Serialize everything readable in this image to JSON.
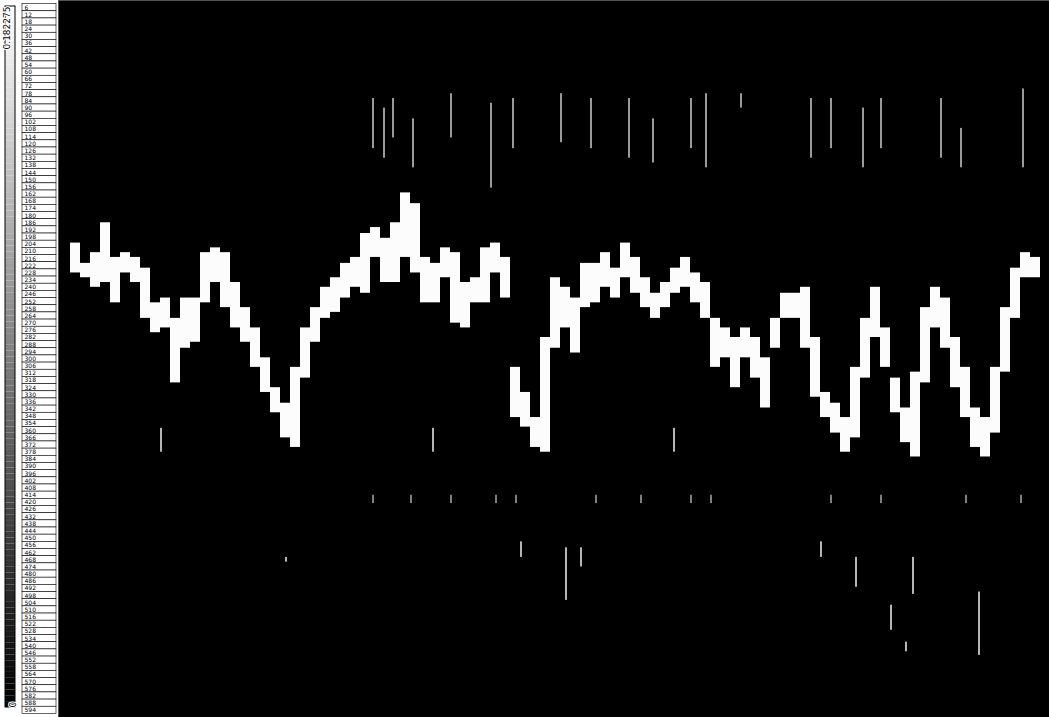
{
  "chart_data": {
    "type": "heatmap",
    "xlim": [
      0,
      991
    ],
    "ylim": [
      0,
      600
    ],
    "yticks": [
      6,
      12,
      18,
      24,
      30,
      36,
      42,
      48,
      54,
      60,
      66,
      72,
      78,
      84,
      90,
      96,
      102,
      108,
      114,
      120,
      126,
      132,
      138,
      144,
      150,
      156,
      162,
      168,
      174,
      180,
      186,
      192,
      198,
      204,
      210,
      216,
      222,
      228,
      234,
      240,
      246,
      252,
      258,
      264,
      270,
      276,
      282,
      288,
      294,
      300,
      306,
      312,
      318,
      324,
      330,
      336,
      342,
      348,
      354,
      360,
      366,
      372,
      378,
      384,
      390,
      396,
      402,
      408,
      414,
      420,
      426,
      432,
      438,
      444,
      450,
      456,
      462,
      468,
      474,
      480,
      486,
      492,
      498,
      504,
      510,
      516,
      522,
      528,
      534,
      540,
      546,
      552,
      558,
      564,
      570,
      576,
      582,
      588,
      594
    ],
    "tick_labels": "y",
    "colorbar": {
      "range": [
        0,
        0.182275
      ],
      "ticks": [
        0,
        0.182275
      ]
    },
    "cells": [
      [
        12,
        22,
        203,
        228,
        0.18
      ],
      [
        22,
        32,
        220,
        232,
        0.18
      ],
      [
        32,
        42,
        211,
        240,
        0.18
      ],
      [
        42,
        52,
        186,
        236,
        0.18
      ],
      [
        52,
        62,
        215,
        253,
        0.18
      ],
      [
        62,
        72,
        211,
        228,
        0.18
      ],
      [
        72,
        82,
        215,
        236,
        0.18
      ],
      [
        82,
        92,
        224,
        266,
        0.18
      ],
      [
        92,
        102,
        253,
        278,
        0.18
      ],
      [
        102,
        112,
        249,
        274,
        0.18
      ],
      [
        112,
        122,
        266,
        320,
        0.18
      ],
      [
        122,
        132,
        249,
        291,
        0.18
      ],
      [
        132,
        142,
        249,
        286,
        0.18
      ],
      [
        142,
        152,
        211,
        253,
        0.18
      ],
      [
        152,
        162,
        207,
        236,
        0.18
      ],
      [
        162,
        172,
        211,
        257,
        0.18
      ],
      [
        172,
        182,
        236,
        274,
        0.18
      ],
      [
        182,
        192,
        257,
        286,
        0.18
      ],
      [
        192,
        202,
        274,
        307,
        0.18
      ],
      [
        202,
        212,
        299,
        328,
        0.18
      ],
      [
        212,
        222,
        324,
        345,
        0.18
      ],
      [
        222,
        232,
        337,
        366,
        0.18
      ],
      [
        232,
        242,
        307,
        374,
        0.18
      ],
      [
        242,
        252,
        274,
        316,
        0.18
      ],
      [
        252,
        262,
        257,
        286,
        0.18
      ],
      [
        262,
        272,
        240,
        266,
        0.18
      ],
      [
        272,
        282,
        232,
        261,
        0.18
      ],
      [
        282,
        292,
        220,
        249,
        0.18
      ],
      [
        292,
        302,
        215,
        240,
        0.18
      ],
      [
        302,
        312,
        195,
        245,
        0.18
      ],
      [
        312,
        322,
        190,
        215,
        0.18
      ],
      [
        322,
        332,
        199,
        236,
        0.18
      ],
      [
        332,
        342,
        186,
        236,
        0.18
      ],
      [
        342,
        352,
        161,
        215,
        0.18
      ],
      [
        352,
        362,
        170,
        228,
        0.18
      ],
      [
        362,
        372,
        215,
        253,
        0.18
      ],
      [
        372,
        382,
        220,
        253,
        0.18
      ],
      [
        382,
        392,
        207,
        232,
        0.18
      ],
      [
        392,
        402,
        211,
        270,
        0.18
      ],
      [
        402,
        412,
        236,
        274,
        0.18
      ],
      [
        412,
        422,
        232,
        253,
        0.18
      ],
      [
        422,
        432,
        207,
        253,
        0.18
      ],
      [
        432,
        442,
        203,
        228,
        0.18
      ],
      [
        442,
        452,
        215,
        249,
        0.18
      ],
      [
        452,
        462,
        307,
        349,
        0.18
      ],
      [
        462,
        472,
        328,
        357,
        0.18
      ],
      [
        472,
        482,
        349,
        374,
        0.18
      ],
      [
        482,
        492,
        282,
        378,
        0.18
      ],
      [
        492,
        502,
        232,
        291,
        0.18
      ],
      [
        502,
        512,
        240,
        274,
        0.18
      ],
      [
        512,
        522,
        249,
        295,
        0.18
      ],
      [
        522,
        532,
        220,
        257,
        0.18
      ],
      [
        532,
        542,
        220,
        253,
        0.18
      ],
      [
        542,
        552,
        211,
        240,
        0.18
      ],
      [
        552,
        562,
        224,
        249,
        0.18
      ],
      [
        562,
        572,
        203,
        232,
        0.18
      ],
      [
        572,
        582,
        215,
        245,
        0.18
      ],
      [
        582,
        592,
        232,
        257,
        0.18
      ],
      [
        592,
        602,
        245,
        266,
        0.18
      ],
      [
        602,
        612,
        236,
        257,
        0.18
      ],
      [
        612,
        622,
        224,
        245,
        0.18
      ],
      [
        622,
        632,
        215,
        240,
        0.18
      ],
      [
        632,
        642,
        228,
        253,
        0.18
      ],
      [
        642,
        652,
        236,
        266,
        0.18
      ],
      [
        652,
        662,
        266,
        307,
        0.18
      ],
      [
        662,
        672,
        274,
        299,
        0.18
      ],
      [
        672,
        682,
        282,
        324,
        0.18
      ],
      [
        682,
        692,
        274,
        299,
        0.18
      ],
      [
        692,
        702,
        282,
        316,
        0.18
      ],
      [
        702,
        712,
        299,
        341,
        0.18
      ],
      [
        712,
        722,
        266,
        291,
        0.18
      ],
      [
        722,
        732,
        245,
        266,
        0.18
      ],
      [
        732,
        742,
        245,
        266,
        0.18
      ],
      [
        742,
        752,
        240,
        291,
        0.18
      ],
      [
        752,
        762,
        282,
        332,
        0.18
      ],
      [
        762,
        772,
        328,
        349,
        0.18
      ],
      [
        772,
        782,
        337,
        362,
        0.18
      ],
      [
        782,
        792,
        349,
        378,
        0.18
      ],
      [
        792,
        802,
        307,
        366,
        0.18
      ],
      [
        802,
        812,
        266,
        316,
        0.18
      ],
      [
        812,
        822,
        240,
        282,
        0.18
      ],
      [
        822,
        832,
        274,
        307,
        0.18
      ],
      [
        832,
        842,
        316,
        345,
        0.18
      ],
      [
        842,
        852,
        341,
        370,
        0.18
      ],
      [
        852,
        862,
        311,
        382,
        0.18
      ],
      [
        862,
        872,
        257,
        320,
        0.18
      ],
      [
        872,
        882,
        240,
        274,
        0.18
      ],
      [
        882,
        892,
        249,
        291,
        0.18
      ],
      [
        892,
        902,
        282,
        324,
        0.18
      ],
      [
        902,
        912,
        307,
        349,
        0.18
      ],
      [
        912,
        922,
        341,
        374,
        0.18
      ],
      [
        922,
        932,
        349,
        382,
        0.18
      ],
      [
        932,
        942,
        307,
        362,
        0.18
      ],
      [
        942,
        952,
        257,
        311,
        0.18
      ],
      [
        952,
        962,
        224,
        266,
        0.18
      ],
      [
        962,
        972,
        211,
        232,
        0.18
      ],
      [
        972,
        982,
        215,
        232,
        0.18
      ],
      [
        314,
        316,
        82,
        124,
        0.11
      ],
      [
        325,
        327,
        90,
        132,
        0.11
      ],
      [
        334,
        336,
        82,
        115,
        0.11
      ],
      [
        354,
        356,
        99,
        140,
        0.11
      ],
      [
        392,
        394,
        78,
        115,
        0.11
      ],
      [
        432,
        434,
        86,
        157,
        0.11
      ],
      [
        454,
        456,
        82,
        124,
        0.11
      ],
      [
        502,
        504,
        78,
        119,
        0.11
      ],
      [
        532,
        534,
        82,
        124,
        0.11
      ],
      [
        570,
        572,
        82,
        132,
        0.11
      ],
      [
        594,
        596,
        99,
        136,
        0.11
      ],
      [
        632,
        634,
        82,
        124,
        0.11
      ],
      [
        647,
        649,
        78,
        140,
        0.11
      ],
      [
        682,
        684,
        78,
        90,
        0.11
      ],
      [
        752,
        754,
        82,
        132,
        0.11
      ],
      [
        772,
        774,
        82,
        124,
        0.11
      ],
      [
        804,
        806,
        90,
        140,
        0.11
      ],
      [
        822,
        824,
        82,
        124,
        0.11
      ],
      [
        882,
        884,
        82,
        132,
        0.11
      ],
      [
        902,
        904,
        107,
        140,
        0.11
      ],
      [
        964,
        966,
        74,
        140,
        0.11
      ],
      [
        314,
        316,
        414,
        421,
        0.09
      ],
      [
        352,
        354,
        414,
        421,
        0.09
      ],
      [
        392,
        394,
        414,
        421,
        0.09
      ],
      [
        437,
        439,
        414,
        421,
        0.09
      ],
      [
        457,
        459,
        414,
        421,
        0.09
      ],
      [
        537,
        539,
        414,
        421,
        0.09
      ],
      [
        582,
        584,
        414,
        421,
        0.09
      ],
      [
        632,
        634,
        414,
        421,
        0.09
      ],
      [
        652,
        654,
        414,
        421,
        0.09
      ],
      [
        772,
        774,
        414,
        421,
        0.09
      ],
      [
        822,
        824,
        414,
        421,
        0.09
      ],
      [
        907,
        909,
        414,
        421,
        0.09
      ],
      [
        962,
        964,
        414,
        421,
        0.09
      ],
      [
        227,
        229,
        466,
        470,
        0.13
      ],
      [
        462,
        464,
        453,
        466,
        0.13
      ],
      [
        507,
        509,
        458,
        502,
        0.13
      ],
      [
        522,
        524,
        458,
        474,
        0.13
      ],
      [
        762,
        764,
        453,
        466,
        0.13
      ],
      [
        797,
        799,
        466,
        491,
        0.13
      ],
      [
        832,
        834,
        506,
        527,
        0.13
      ],
      [
        854,
        856,
        466,
        497,
        0.13
      ],
      [
        920,
        922,
        495,
        548,
        0.13
      ],
      [
        847,
        849,
        537,
        545,
        0.13
      ],
      [
        102,
        104,
        358,
        378,
        0.13
      ],
      [
        374,
        376,
        358,
        378,
        0.13
      ],
      [
        615,
        617,
        358,
        378,
        0.13
      ]
    ]
  }
}
